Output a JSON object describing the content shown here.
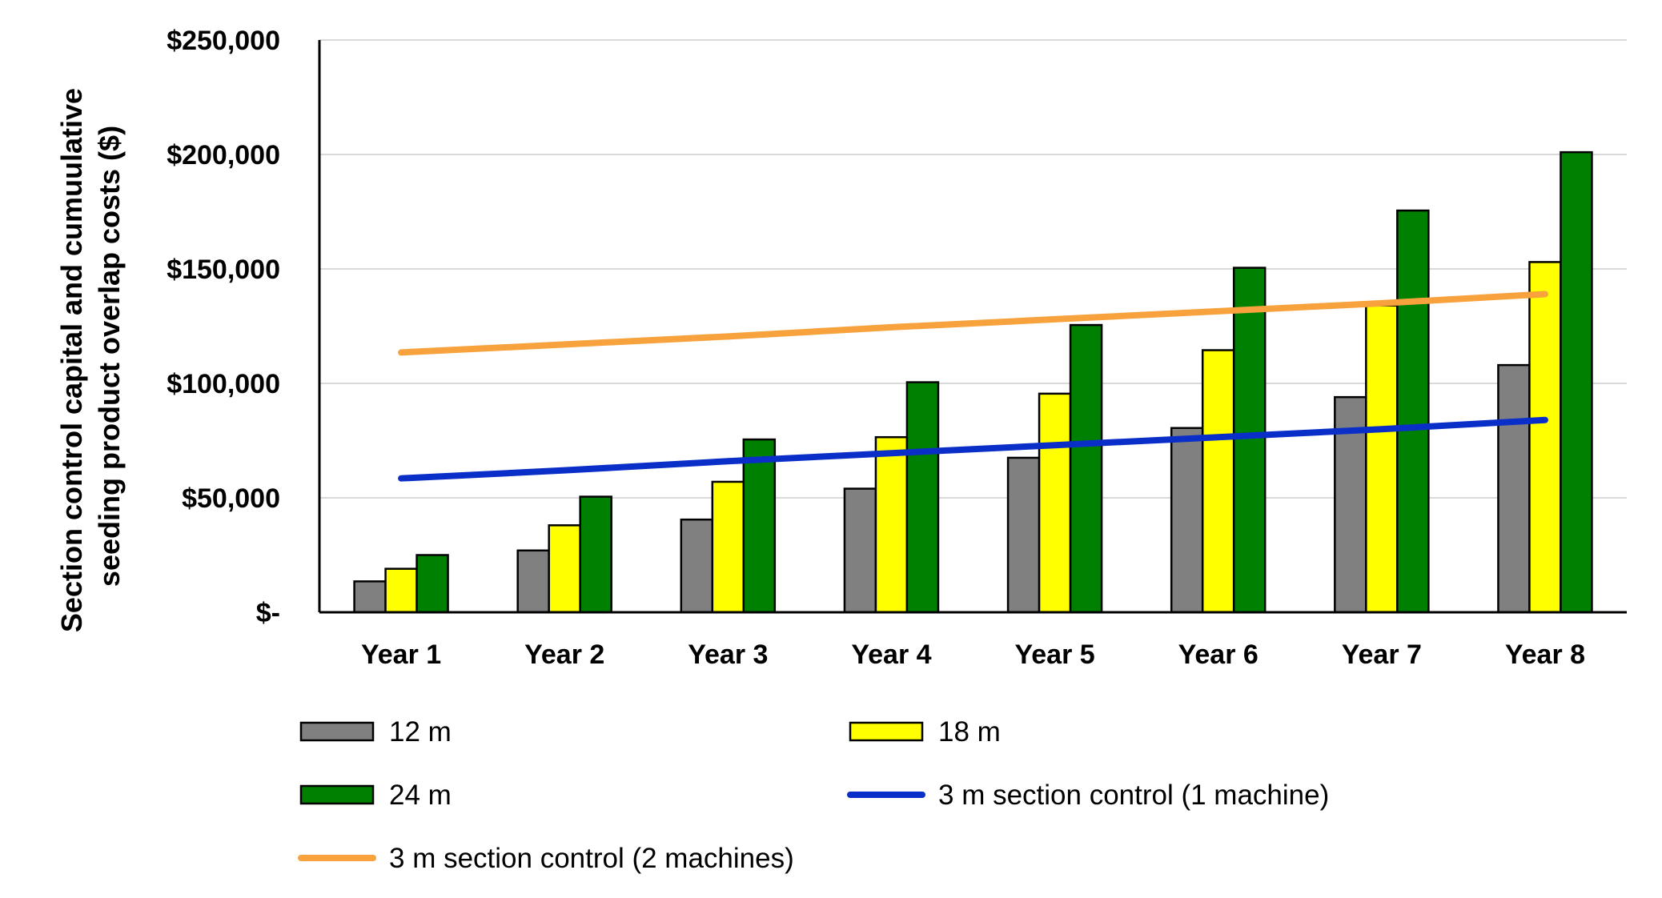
{
  "chart_data": {
    "type": "bar",
    "title": "",
    "xlabel": "",
    "ylabel_lines": [
      "Section control capital and cumuulative",
      "seeding product overlap costs ($)"
    ],
    "categories": [
      "Year 1",
      "Year 2",
      "Year 3",
      "Year 4",
      "Year 5",
      "Year 6",
      "Year 7",
      "Year 8"
    ],
    "ylim": [
      0,
      250000
    ],
    "yticks": [
      0,
      50000,
      100000,
      150000,
      200000,
      250000
    ],
    "ytick_labels": [
      "$-",
      "$50,000",
      "$100,000",
      "$150,000",
      "$200,000",
      "$250,000"
    ],
    "grid": true,
    "legend_position": "bottom",
    "series": [
      {
        "name": "12 m",
        "kind": "bar",
        "color": "#808080",
        "values": [
          13500,
          27000,
          40500,
          54000,
          67500,
          80500,
          94000,
          108000
        ]
      },
      {
        "name": "18 m",
        "kind": "bar",
        "color": "#ffff00",
        "values": [
          19000,
          38000,
          57000,
          76500,
          95500,
          114500,
          134000,
          153000
        ]
      },
      {
        "name": "24 m",
        "kind": "bar",
        "color": "#008000",
        "values": [
          25000,
          50500,
          75500,
          100500,
          125500,
          150500,
          175500,
          201000
        ]
      },
      {
        "name": "3 m section control (1 machine)",
        "kind": "line",
        "color": "#0a2fc8",
        "values": [
          58500,
          62000,
          66000,
          69500,
          73000,
          76500,
          80000,
          84000
        ]
      },
      {
        "name": "3 m section control (2 machines)",
        "kind": "line",
        "color": "#f7a23c",
        "values": [
          113500,
          117000,
          120500,
          124500,
          128000,
          131500,
          135000,
          139000
        ]
      }
    ]
  }
}
